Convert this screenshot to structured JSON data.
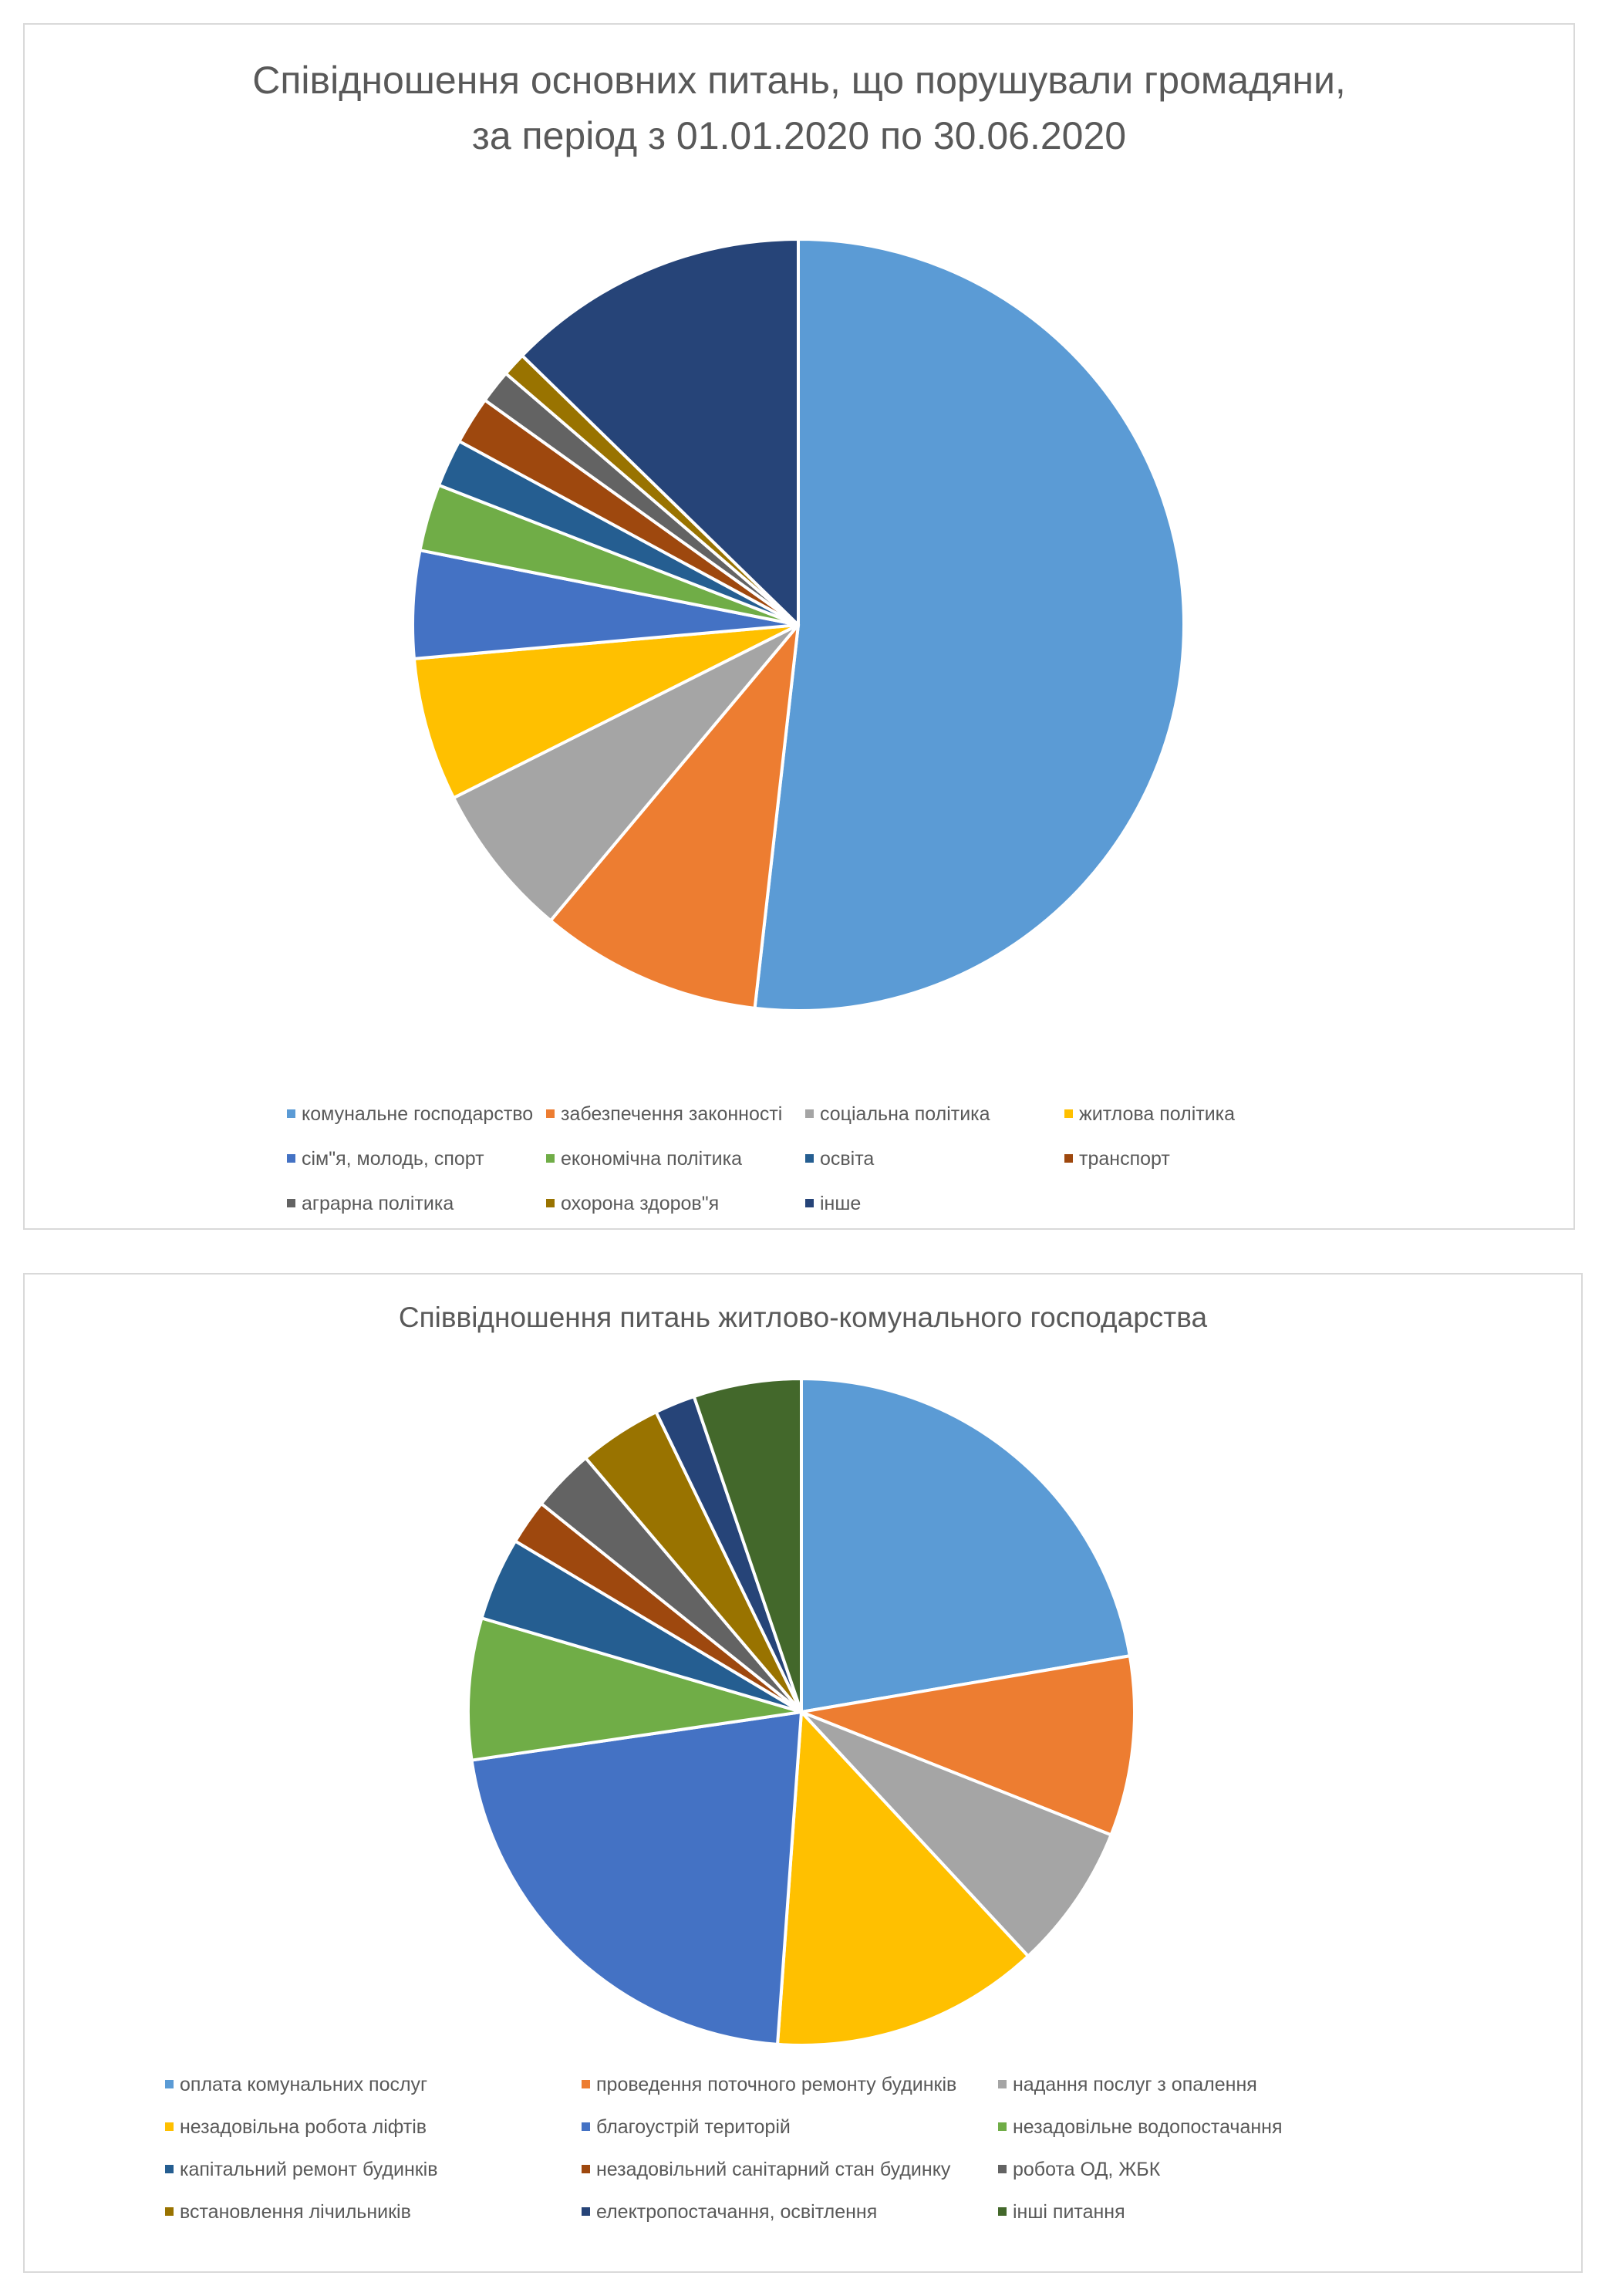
{
  "chart_data": [
    {
      "type": "pie",
      "title": [
        "Співідношення основних питань, що порушували громадяни,",
        "за період з 01.01.2020 по 30.06.2020"
      ],
      "legend_position": "bottom",
      "series": [
        {
          "name": "комунальне господарство",
          "value": 51.8,
          "color": "#5B9BD5"
        },
        {
          "name": "забезпечення законності",
          "value": 9.3,
          "color": "#ED7D31"
        },
        {
          "name": "соціальна політика",
          "value": 6.5,
          "color": "#A5A5A5"
        },
        {
          "name": "житлова політика",
          "value": 6.0,
          "color": "#FFC000"
        },
        {
          "name": "сім\"я, молодь, спорт",
          "value": 4.5,
          "color": "#4472C4"
        },
        {
          "name": "економічна політика",
          "value": 2.8,
          "color": "#70AD47"
        },
        {
          "name": "освіта",
          "value": 2.0,
          "color": "#255E91"
        },
        {
          "name": "транспорт",
          "value": 2.0,
          "color": "#9E480E"
        },
        {
          "name": "аграрна політика",
          "value": 1.4,
          "color": "#636363"
        },
        {
          "name": "охорона здоров\"я",
          "value": 1.0,
          "color": "#997300"
        },
        {
          "name": "інше",
          "value": 12.7,
          "color": "#264478"
        }
      ]
    },
    {
      "type": "pie",
      "title": [
        "Співвідношення питань житлово-комунального господарства"
      ],
      "legend_position": "bottom",
      "series": [
        {
          "name": "оплата комунальних послуг",
          "value": 20.5,
          "color": "#5B9BD5"
        },
        {
          "name": "проведення поточного ремонту будинків",
          "value": 8.0,
          "color": "#ED7D31"
        },
        {
          "name": "надання послуг з опалення",
          "value": 6.5,
          "color": "#A5A5A5"
        },
        {
          "name": "незадовільна робота ліфтів",
          "value": 12.0,
          "color": "#FFC000"
        },
        {
          "name": "благоустрій територій",
          "value": 19.8,
          "color": "#4472C4"
        },
        {
          "name": "незадовільне водопостачання",
          "value": 6.3,
          "color": "#70AD47"
        },
        {
          "name": "капітальний ремонт будинків",
          "value": 3.7,
          "color": "#255E91"
        },
        {
          "name": "незадовільний санітарний стан будинку",
          "value": 2.0,
          "color": "#9E480E"
        },
        {
          "name": "робота ОД, ЖБК",
          "value": 2.8,
          "color": "#636363"
        },
        {
          "name": "встановлення лічильників",
          "value": 3.7,
          "color": "#997300"
        },
        {
          "name": "електропостачання, освітлення",
          "value": 1.8,
          "color": "#264478"
        },
        {
          "name": "інші питання",
          "value": 4.8,
          "color": "#43682B"
        }
      ]
    }
  ]
}
